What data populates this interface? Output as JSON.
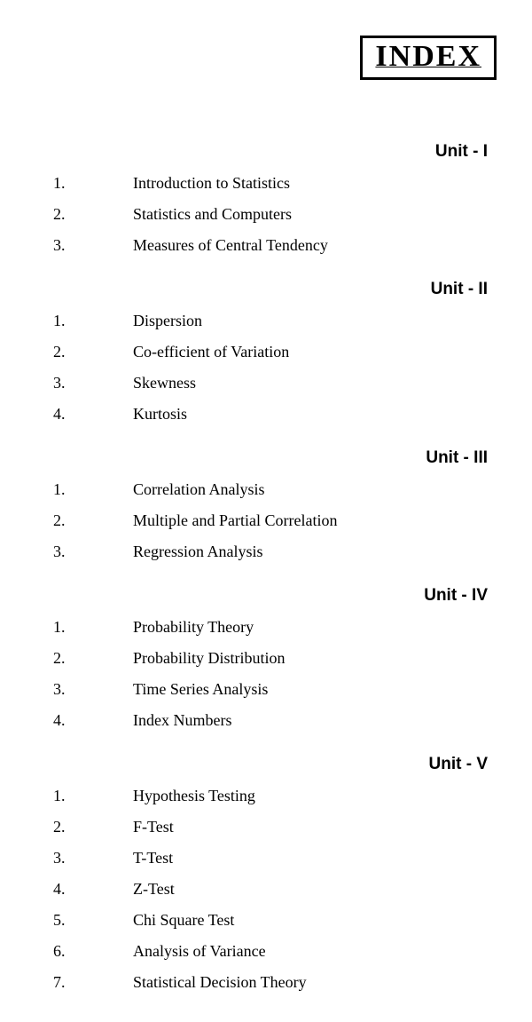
{
  "header": {
    "title": "INDEX"
  },
  "units": [
    {
      "heading": "Unit - I",
      "entries": [
        {
          "num": "1.",
          "title": "Introduction to Statistics"
        },
        {
          "num": "2.",
          "title": "Statistics and Computers"
        },
        {
          "num": "3.",
          "title": "Measures of Central Tendency"
        }
      ]
    },
    {
      "heading": "Unit - II",
      "entries": [
        {
          "num": "1.",
          "title": "Dispersion"
        },
        {
          "num": "2.",
          "title": "Co-efficient of Variation"
        },
        {
          "num": "3.",
          "title": "Skewness"
        },
        {
          "num": "4.",
          "title": "Kurtosis"
        }
      ]
    },
    {
      "heading": "Unit - III",
      "entries": [
        {
          "num": "1.",
          "title": "Correlation Analysis"
        },
        {
          "num": "2.",
          "title": "Multiple and Partial Correlation"
        },
        {
          "num": "3.",
          "title": "Regression Analysis"
        }
      ]
    },
    {
      "heading": "Unit - IV",
      "entries": [
        {
          "num": "1.",
          "title": "Probability Theory"
        },
        {
          "num": "2.",
          "title": "Probability Distribution"
        },
        {
          "num": "3.",
          "title": "Time Series Analysis"
        },
        {
          "num": "4.",
          "title": "Index Numbers"
        }
      ]
    },
    {
      "heading": "Unit - V",
      "entries": [
        {
          "num": "1.",
          "title": "Hypothesis Testing"
        },
        {
          "num": "2.",
          "title": "F-Test"
        },
        {
          "num": "3.",
          "title": "T-Test"
        },
        {
          "num": "4.",
          "title": "Z-Test"
        },
        {
          "num": "5.",
          "title": "Chi Square Test"
        },
        {
          "num": "6.",
          "title": "Analysis of Variance"
        },
        {
          "num": "7.",
          "title": "Statistical Decision Theory"
        }
      ]
    }
  ]
}
